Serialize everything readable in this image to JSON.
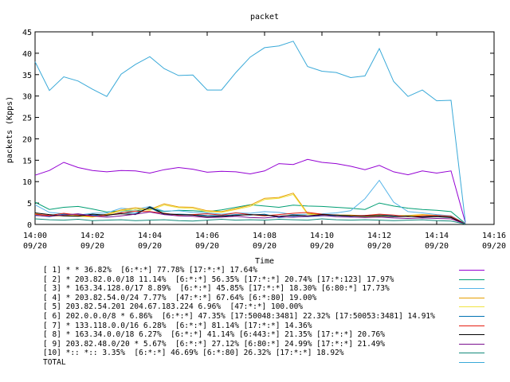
{
  "chart_data": {
    "type": "line",
    "title": "packet",
    "xlabel": "Time",
    "ylabel": "packets (Kpps)",
    "ylim": [
      0,
      45
    ],
    "yticks": [
      0,
      5,
      10,
      15,
      20,
      25,
      30,
      35,
      40,
      45
    ],
    "xticks": [
      {
        "time": "14:00",
        "date": "09/20"
      },
      {
        "time": "14:02",
        "date": "09/20"
      },
      {
        "time": "14:04",
        "date": "09/20"
      },
      {
        "time": "14:06",
        "date": "09/20"
      },
      {
        "time": "14:08",
        "date": "09/20"
      },
      {
        "time": "14:10",
        "date": "09/20"
      },
      {
        "time": "14:12",
        "date": "09/20"
      },
      {
        "time": "14:14",
        "date": "09/20"
      },
      {
        "time": "14:16",
        "date": "09/20"
      }
    ],
    "x": [
      "14:00",
      "14:00:30",
      "14:01",
      "14:01:30",
      "14:02",
      "14:02:30",
      "14:03",
      "14:03:30",
      "14:04",
      "14:04:30",
      "14:05",
      "14:05:30",
      "14:06",
      "14:06:30",
      "14:07",
      "14:07:30",
      "14:08",
      "14:08:30",
      "14:09",
      "14:09:30",
      "14:10",
      "14:10:30",
      "14:11",
      "14:11:30",
      "14:12",
      "14:12:30",
      "14:13",
      "14:13:30",
      "14:14",
      "14:14:30",
      "14:15"
    ],
    "grid": false,
    "legend_position": "bottom",
    "series": [
      {
        "name": "[ 1] * * 36.82%  [6:*:*] 77.78% [17:*:*] 17.64%",
        "color": "#9400d3",
        "values": [
          11.5,
          12.6,
          14.5,
          13.3,
          12.6,
          12.3,
          12.6,
          12.5,
          12.0,
          12.8,
          13.3,
          12.9,
          12.2,
          12.4,
          12.3,
          11.8,
          12.5,
          14.2,
          14.0,
          15.2,
          14.5,
          14.2,
          13.6,
          12.8,
          13.8,
          12.3,
          11.6,
          12.5,
          12.0,
          12.5,
          0.4
        ]
      },
      {
        "name": "[ 2] * 203.82.0.0/18 11.14%  [6:*:*] 56.35% [17:*:*] 20.74% [17:*:123] 17.97%",
        "color": "#009e73",
        "values": [
          5.2,
          3.5,
          4.0,
          4.2,
          3.6,
          2.9,
          3.2,
          3.1,
          3.8,
          3.0,
          3.3,
          3.2,
          3.0,
          3.4,
          4.0,
          4.6,
          4.3,
          4.0,
          4.5,
          4.3,
          4.2,
          4.0,
          3.8,
          3.5,
          5.0,
          4.3,
          3.8,
          3.5,
          3.3,
          3.0,
          0.2
        ]
      },
      {
        "name": "[ 3] * 163.34.128.0/17 8.89%  [6:*:*] 45.85% [17:*:*] 18.30% [6:80:*] 17.73%",
        "color": "#56b4e9",
        "values": [
          4.6,
          2.8,
          2.5,
          2.2,
          2.6,
          2.7,
          3.8,
          3.5,
          4.2,
          3.1,
          3.2,
          2.8,
          2.7,
          2.4,
          2.7,
          2.6,
          3.0,
          2.8,
          2.3,
          2.4,
          2.5,
          2.7,
          3.2,
          6.0,
          10.3,
          5.2,
          3.0,
          2.7,
          2.3,
          2.0,
          0.2
        ]
      },
      {
        "name": "[ 4] * 203.82.54.0/24 7.77%  [47:*:*] 67.64% [6:*:80] 19.00%",
        "color": "#e69f00",
        "values": [
          2.5,
          2.0,
          2.2,
          2.0,
          1.8,
          2.4,
          3.4,
          3.9,
          3.5,
          4.8,
          4.1,
          4.0,
          3.2,
          3.0,
          3.7,
          4.5,
          6.1,
          6.3,
          7.3,
          2.6,
          2.3,
          2.2,
          2.2,
          2.0,
          2.1,
          2.0,
          2.1,
          2.3,
          2.1,
          1.8,
          0.1
        ]
      },
      {
        "name": "[ 5] 203.82.54.201 204.67.183.224 6.96%  [47:*:*] 100.00%",
        "color": "#f0e442",
        "values": [
          2.3,
          1.9,
          2.0,
          1.9,
          1.7,
          2.2,
          3.2,
          3.6,
          3.3,
          4.5,
          3.9,
          3.7,
          3.0,
          2.8,
          3.5,
          4.2,
          5.8,
          6.1,
          7.0,
          2.4,
          2.1,
          2.0,
          2.0,
          1.8,
          1.9,
          1.9,
          2.0,
          2.1,
          1.9,
          1.6,
          0.1
        ]
      },
      {
        "name": "[ 6] 202.0.0.0/8 * 6.86%  [6:*:*] 47.35% [17:50048:3481] 22.32% [17:50053:3481] 14.91%",
        "color": "#0072b2",
        "values": [
          2.2,
          1.8,
          2.4,
          2.3,
          2.2,
          2.0,
          2.8,
          2.6,
          3.9,
          2.3,
          2.4,
          2.3,
          2.1,
          2.0,
          2.3,
          2.2,
          2.4,
          1.6,
          1.9,
          1.8,
          2.0,
          2.1,
          1.9,
          2.1,
          2.3,
          2.0,
          1.9,
          1.8,
          1.9,
          1.7,
          0.1
        ]
      },
      {
        "name": "[ 7] * 133.118.0.0/16 6.28%  [6:*:*] 81.14% [17:*:*] 14.36%",
        "color": "#e51e10",
        "values": [
          2.4,
          2.1,
          2.6,
          2.2,
          1.9,
          2.1,
          2.7,
          3.1,
          3.0,
          2.6,
          2.2,
          2.3,
          2.5,
          2.2,
          2.7,
          2.3,
          2.0,
          2.3,
          2.6,
          2.8,
          2.4,
          2.2,
          2.0,
          2.1,
          2.4,
          2.2,
          1.8,
          2.0,
          2.1,
          1.9,
          0.1
        ]
      },
      {
        "name": "[ 8] * 163.34.0.0/18 6.27%  [6:*:*] 41.14% [6:443:*] 21.35% [17:*:*] 20.76%",
        "color": "#000000",
        "values": [
          2.7,
          2.3,
          2.0,
          1.9,
          2.4,
          2.2,
          2.5,
          2.3,
          4.1,
          2.5,
          2.3,
          2.2,
          1.8,
          1.9,
          2.1,
          2.3,
          2.2,
          1.9,
          2.2,
          2.0,
          2.3,
          2.2,
          2.0,
          1.9,
          2.0,
          1.8,
          1.9,
          1.7,
          1.8,
          1.6,
          0.1
        ]
      },
      {
        "name": "[ 9] 203.82.48.0/20 * 5.67%  [6:*:*] 27.12% [6:80:*] 24.99% [17:*:*] 21.49%",
        "color": "#7b0f8f",
        "values": [
          2.1,
          1.9,
          2.2,
          2.5,
          2.0,
          1.7,
          2.0,
          2.4,
          2.9,
          2.3,
          2.0,
          1.9,
          1.6,
          1.7,
          1.9,
          1.6,
          1.5,
          1.8,
          1.7,
          1.9,
          2.1,
          1.8,
          1.7,
          1.6,
          1.7,
          1.5,
          1.4,
          1.5,
          1.4,
          1.3,
          0.1
        ]
      },
      {
        "name": "[10] *:: *:: 3.35%  [6:*:*] 46.69% [6:*:80] 26.32% [17:*:*] 18.92%",
        "color": "#128a7a",
        "values": [
          1.3,
          1.1,
          1.0,
          1.2,
          0.9,
          1.0,
          1.1,
          0.9,
          1.0,
          1.1,
          0.9,
          0.8,
          1.0,
          1.2,
          1.0,
          1.1,
          1.0,
          1.2,
          1.1,
          1.0,
          1.3,
          1.1,
          1.0,
          1.1,
          1.0,
          0.9,
          1.0,
          1.1,
          0.9,
          0.8,
          0.1
        ]
      },
      {
        "name": "TOTAL",
        "color": "#39a9d8",
        "values": [
          38.0,
          31.3,
          34.5,
          33.5,
          31.6,
          29.9,
          35.1,
          37.4,
          39.2,
          36.4,
          34.8,
          34.9,
          31.4,
          31.4,
          35.5,
          39.1,
          41.3,
          41.7,
          42.8,
          36.9,
          35.8,
          35.5,
          34.3,
          34.7,
          41.1,
          33.4,
          29.9,
          31.4,
          28.9,
          29.0,
          0.5
        ]
      }
    ]
  }
}
